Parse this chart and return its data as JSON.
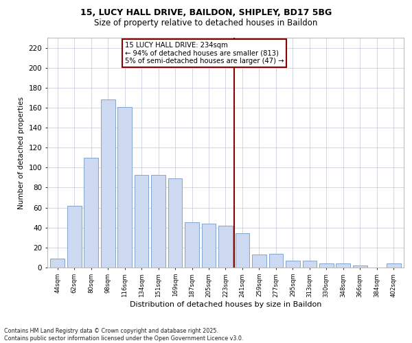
{
  "title1": "15, LUCY HALL DRIVE, BAILDON, SHIPLEY, BD17 5BG",
  "title2": "Size of property relative to detached houses in Baildon",
  "xlabel": "Distribution of detached houses by size in Baildon",
  "ylabel": "Number of detached properties",
  "categories": [
    "44sqm",
    "62sqm",
    "80sqm",
    "98sqm",
    "116sqm",
    "134sqm",
    "151sqm",
    "169sqm",
    "187sqm",
    "205sqm",
    "223sqm",
    "241sqm",
    "259sqm",
    "277sqm",
    "295sqm",
    "313sqm",
    "330sqm",
    "348sqm",
    "366sqm",
    "384sqm",
    "402sqm"
  ],
  "values": [
    9,
    62,
    110,
    168,
    161,
    93,
    93,
    89,
    45,
    44,
    42,
    34,
    13,
    14,
    7,
    7,
    4,
    4,
    2,
    0,
    4
  ],
  "bar_color": "#ccd9f0",
  "bar_edge_color": "#7399c6",
  "vline_color": "#8b0000",
  "annotation_text": "15 LUCY HALL DRIVE: 234sqm\n← 94% of detached houses are smaller (813)\n5% of semi-detached houses are larger (47) →",
  "annotation_box_color": "#8b0000",
  "ylim": [
    0,
    230
  ],
  "yticks": [
    0,
    20,
    40,
    60,
    80,
    100,
    120,
    140,
    160,
    180,
    200,
    220
  ],
  "footer_line1": "Contains HM Land Registry data © Crown copyright and database right 2025.",
  "footer_line2": "Contains public sector information licensed under the Open Government Licence v3.0.",
  "background_color": "#ffffff",
  "grid_color": "#b0b8d0"
}
